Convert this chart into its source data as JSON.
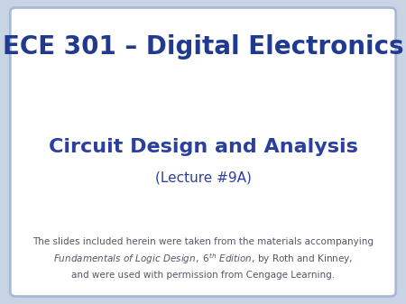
{
  "title": "ECE 301 – Digital Electronics",
  "subtitle": "Circuit Design and Analysis",
  "lecture": "(Lecture #9A)",
  "footnote_line1": "The slides included herein were taken from the materials accompanying",
  "footnote_line2": "Fundamentals of Logic Design, 6$^{th}$ Edition, by Roth and Kinney,",
  "footnote_line3": "and were used with permission from Cengage Learning.",
  "title_color": "#1F3A8F",
  "subtitle_color": "#2B3F9E",
  "lecture_color": "#2B3F9E",
  "footnote_color": "#555566",
  "bg_color": "#FFFFFF",
  "border_color": "#A8B8D8",
  "outer_bg": "#C8D4E4",
  "title_fontsize": 20,
  "subtitle_fontsize": 16,
  "lecture_fontsize": 11,
  "footnote_fontsize": 7.5
}
